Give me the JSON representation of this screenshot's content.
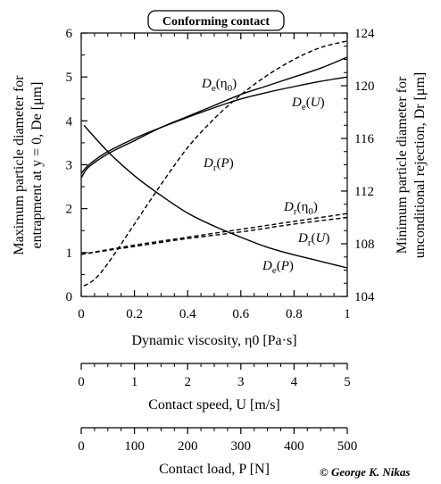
{
  "chart_data": {
    "type": "line",
    "title": "Conforming contact",
    "copyright": "© George K. Nikas",
    "axes": {
      "left": {
        "label_line1": "Maximum particle diameter for",
        "label_line2": "entrapment at y = 0, De [μm]",
        "ylim": [
          0,
          6
        ],
        "ticks": [
          "0",
          "1",
          "2",
          "3",
          "4",
          "5",
          "6"
        ]
      },
      "right": {
        "label_line1": "Minimum particle diameter for",
        "label_line2": "unconditional rejection, Dr [μm]",
        "ylim": [
          104,
          124
        ],
        "ticks": [
          "104",
          "108",
          "112",
          "116",
          "120",
          "124"
        ]
      },
      "bottom1": {
        "label": "Dynamic viscosity, η0 [Pa·s]",
        "xlim": [
          0,
          1
        ],
        "ticks": [
          "0",
          "0.2",
          "0.4",
          "0.6",
          "0.8",
          "1"
        ]
      },
      "bottom2": {
        "label": "Contact speed, U [m/s]",
        "xlim": [
          0,
          5
        ],
        "ticks": [
          "0",
          "1",
          "2",
          "3",
          "4",
          "5"
        ]
      },
      "bottom3": {
        "label": "Contact load, P [N]",
        "xlim": [
          0,
          500
        ],
        "ticks": [
          "0",
          "100",
          "200",
          "300",
          "400",
          "500"
        ]
      }
    },
    "series": [
      {
        "name": "De(η0)",
        "axis": "left",
        "style": "solid",
        "x": [
          0,
          0.02,
          0.05,
          0.1,
          0.2,
          0.3,
          0.4,
          0.5,
          0.6,
          0.7,
          0.8,
          0.9,
          1.0
        ],
        "values": [
          2.7,
          2.9,
          3.05,
          3.25,
          3.55,
          3.85,
          4.1,
          4.35,
          4.6,
          4.8,
          5.0,
          5.2,
          5.45
        ]
      },
      {
        "name": "De(U)",
        "axis": "left",
        "style": "solid",
        "x": [
          0,
          0.02,
          0.05,
          0.1,
          0.2,
          0.3,
          0.4,
          0.5,
          0.6,
          0.7,
          0.8,
          0.9,
          1.0
        ],
        "values": [
          2.8,
          2.95,
          3.1,
          3.3,
          3.6,
          3.85,
          4.08,
          4.3,
          4.5,
          4.65,
          4.78,
          4.9,
          5.0
        ]
      },
      {
        "name": "De(P)",
        "axis": "left",
        "style": "solid",
        "x": [
          0.01,
          0.1,
          0.2,
          0.3,
          0.4,
          0.5,
          0.6,
          0.7,
          0.8,
          0.9,
          1.0
        ],
        "values": [
          3.9,
          3.3,
          2.75,
          2.3,
          1.9,
          1.6,
          1.35,
          1.12,
          0.95,
          0.8,
          0.65
        ]
      },
      {
        "name": "Dr(P)",
        "axis": "right",
        "style": "dashed",
        "x": [
          0.01,
          0.05,
          0.1,
          0.2,
          0.3,
          0.4,
          0.5,
          0.6,
          0.7,
          0.8,
          0.9,
          1.0
        ],
        "values": [
          104.8,
          105.3,
          106.5,
          109.5,
          112.5,
          115.3,
          117.5,
          119.3,
          120.8,
          122.0,
          122.9,
          123.4
        ]
      },
      {
        "name": "Dr(η0)",
        "axis": "right",
        "style": "dashed",
        "x": [
          0,
          0.2,
          0.4,
          0.6,
          0.8,
          1.0
        ],
        "values": [
          107.2,
          107.9,
          108.5,
          109.1,
          109.7,
          110.3
        ]
      },
      {
        "name": "Dr(U)",
        "axis": "right",
        "style": "dashed",
        "x": [
          0,
          0.2,
          0.4,
          0.6,
          0.8,
          1.0
        ],
        "values": [
          107.2,
          107.8,
          108.4,
          108.9,
          109.5,
          110.0
        ]
      }
    ],
    "curve_labels": [
      {
        "main": "D",
        "sub": "e",
        "arg": "η0",
        "text": "De(η0)"
      },
      {
        "main": "D",
        "sub": "e",
        "arg": "U",
        "text": "De(U)"
      },
      {
        "main": "D",
        "sub": "r",
        "arg": "P",
        "text": "Dr(P)"
      },
      {
        "main": "D",
        "sub": "r",
        "arg": "η0",
        "text": "Dr(η0)"
      },
      {
        "main": "D",
        "sub": "r",
        "arg": "U",
        "text": "Dr(U)"
      },
      {
        "main": "D",
        "sub": "e",
        "arg": "P",
        "text": "De(P)"
      }
    ],
    "grid": false
  }
}
